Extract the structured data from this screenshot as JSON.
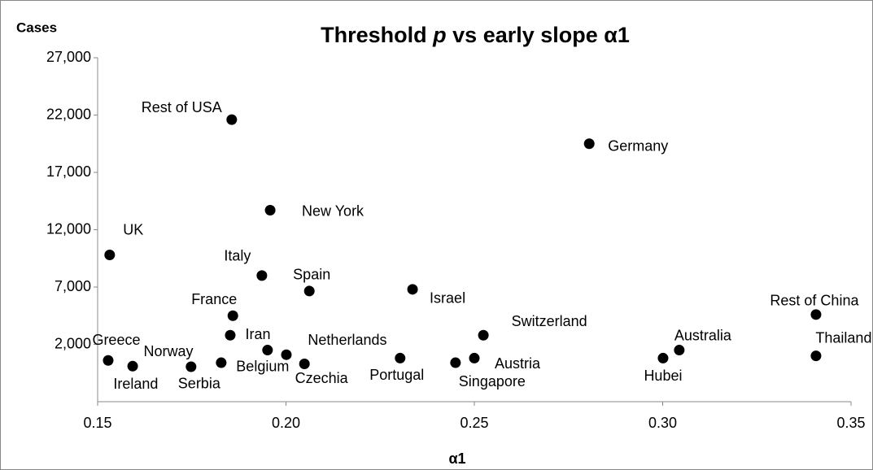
{
  "chart_data": {
    "type": "scatter",
    "title": [
      "Threshold",
      "p",
      "vs early slope α1"
    ],
    "xlabel": "α1",
    "ylabel": "Cases",
    "xlim": [
      0.15,
      0.35
    ],
    "ylim": [
      -3000,
      27000
    ],
    "xticks": [
      0.15,
      {
        "value": 0.2,
        "label": "0.20"
      },
      0.25,
      {
        "value": 0.3,
        "label": "0.30"
      },
      0.35
    ],
    "yticks": [
      {
        "value": 2000,
        "label": "2,000"
      },
      {
        "value": 7000,
        "label": "7,000"
      },
      {
        "value": 12000,
        "label": "12,000"
      },
      {
        "value": 17000,
        "label": "17,000"
      },
      {
        "value": 22000,
        "label": "22,000"
      },
      {
        "value": 27000,
        "label": "27,000"
      }
    ],
    "color": "#000000",
    "series": [
      {
        "names": [
          "Rest of USA",
          "Germany",
          "New York",
          "UK",
          "Italy",
          "Spain",
          "Israel",
          "France",
          "Rest of China",
          "Iran",
          "Switzerland",
          "Netherlands",
          "Australia",
          "Thailand",
          "Greece",
          "Norway",
          "Belgium",
          "Czechia",
          "Ireland",
          "Serbia",
          "Portugal",
          "Austria",
          "Singapore",
          "Hubei"
        ],
        "x": [
          0.1856,
          0.2805,
          0.1958,
          0.1532,
          0.1936,
          0.2062,
          0.2336,
          0.1859,
          0.3407,
          0.1852,
          0.2524,
          0.2001,
          0.3044,
          0.3407,
          0.1528,
          0.1593,
          0.1951,
          0.2049,
          0.1828,
          0.1748,
          0.2303,
          0.25,
          0.245,
          0.3001
        ],
        "values": [
          21600,
          19500,
          13700,
          9800,
          8000,
          6650,
          6800,
          4500,
          4600,
          2800,
          2800,
          1100,
          1500,
          1000,
          600,
          100,
          1500,
          300,
          400,
          50,
          800,
          800,
          400,
          800
        ]
      }
    ]
  }
}
